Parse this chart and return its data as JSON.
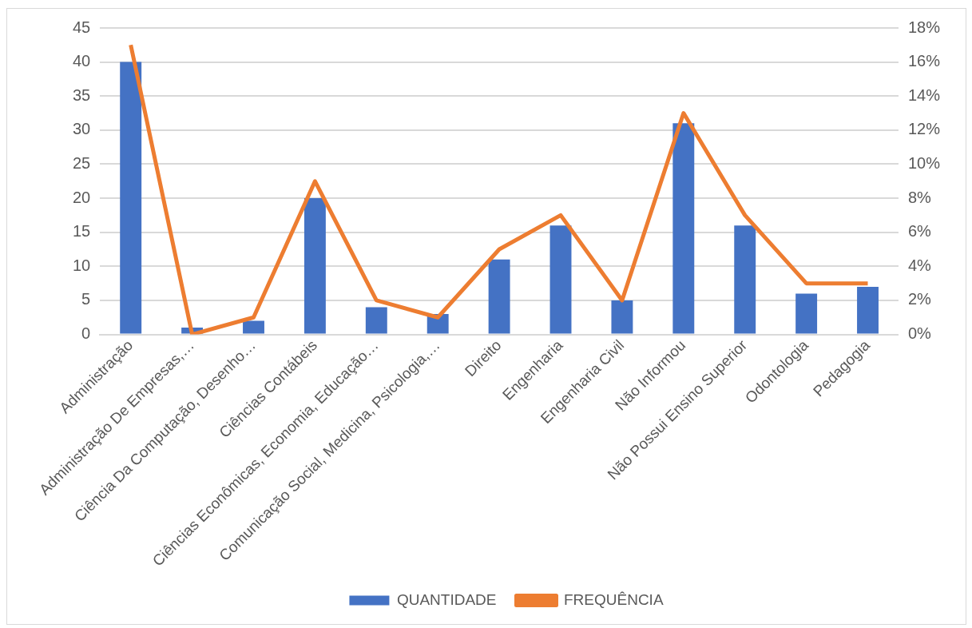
{
  "chart_data": {
    "type": "bar",
    "categories": [
      "Administração",
      "Administração De Empresas,…",
      "Ciência Da Computação, Desenho…",
      "Ciências Contábeis",
      "Ciências Econômicas, Economia, Educação…",
      "Comunicação Social, Medicina, Psicologia,…",
      "Direito",
      "Engenharia",
      "Engenharia Civil",
      "Não Informou",
      "Não Possui Ensino Superior",
      "Odontologia",
      "Pedagogia"
    ],
    "series": [
      {
        "name": "QUANTIDADE",
        "color": "#4472c4",
        "values": [
          40,
          1,
          2,
          20,
          4,
          3,
          11,
          16,
          5,
          31,
          16,
          6,
          7
        ]
      },
      {
        "name": "FREQUÊNCIA",
        "type": "line",
        "axis": "y2",
        "color": "#ed7d31",
        "values": [
          17,
          0,
          1,
          9,
          2,
          1,
          5,
          7,
          2,
          13,
          7,
          3,
          3
        ]
      }
    ],
    "ylim": [
      0,
      45
    ],
    "yticks": [
      0,
      5,
      10,
      15,
      20,
      25,
      30,
      35,
      40,
      45
    ],
    "y2lim": [
      0,
      18
    ],
    "y2ticks": [
      {
        "value": 0,
        "label": "0%"
      },
      {
        "value": 2,
        "label": "2%"
      },
      {
        "value": 4,
        "label": "4%"
      },
      {
        "value": 6,
        "label": "6%"
      },
      {
        "value": 8,
        "label": "8%"
      },
      {
        "value": 10,
        "label": "10%"
      },
      {
        "value": 12,
        "label": "12%"
      },
      {
        "value": 14,
        "label": "14%"
      },
      {
        "value": 16,
        "label": "16%"
      },
      {
        "value": 18,
        "label": "18%"
      }
    ],
    "grid": "y",
    "legend": "bottom",
    "marker": "none"
  }
}
